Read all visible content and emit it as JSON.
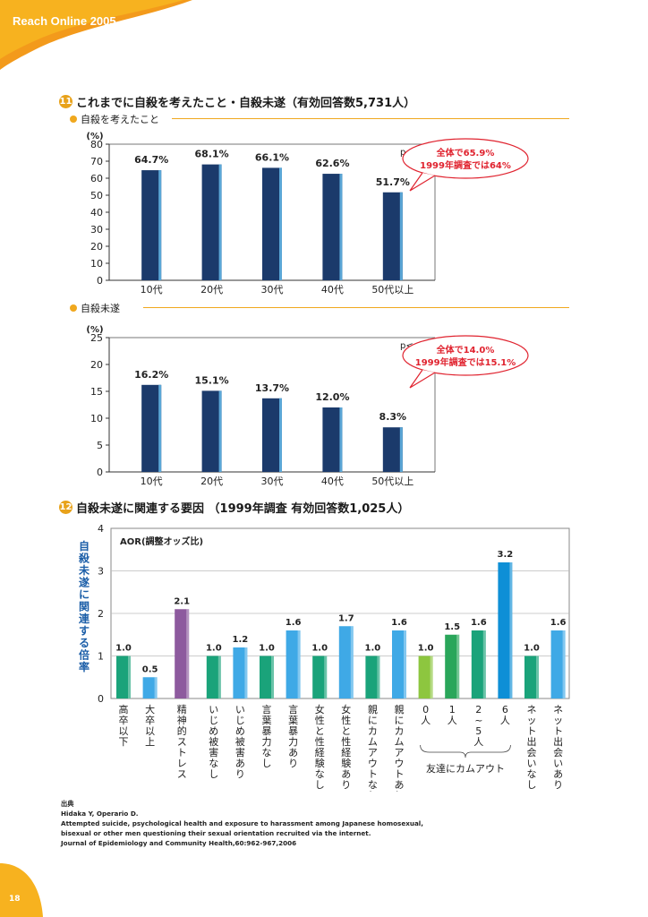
{
  "header": {
    "title": "Reach Online 2005"
  },
  "page_number": "18",
  "section11": {
    "number": "11",
    "title": "これまでに自殺を考えたこと・自殺未遂（有効回答数5,731人）"
  },
  "section12": {
    "number": "12",
    "title": "自殺未遂に関連する要因 （1999年調査 有効回答数1,025人）"
  },
  "chart_data": [
    {
      "type": "bar",
      "subtitle": "自殺を考えたこと",
      "unit_label": "(%)",
      "significance": "p<.001",
      "categories": [
        "10代",
        "20代",
        "30代",
        "40代",
        "50代以上"
      ],
      "values": [
        64.7,
        68.1,
        66.1,
        62.6,
        51.7
      ],
      "data_labels": [
        "64.7%",
        "68.1%",
        "66.1%",
        "62.6%",
        "51.7%"
      ],
      "ylim": [
        0,
        80
      ],
      "yticks": [
        "0",
        "10",
        "20",
        "30",
        "40",
        "50",
        "60",
        "70",
        "80"
      ],
      "annotation": [
        "全体で65.9%",
        "1999年調査では64%"
      ],
      "bar_color": "#1b3a6b",
      "annotation_color": "#e0232f"
    },
    {
      "type": "bar",
      "subtitle": "自殺未遂",
      "unit_label": "(%)",
      "significance": "p<.001",
      "categories": [
        "10代",
        "20代",
        "30代",
        "40代",
        "50代以上"
      ],
      "values": [
        16.2,
        15.1,
        13.7,
        12.0,
        8.3
      ],
      "data_labels": [
        "16.2%",
        "15.1%",
        "13.7%",
        "12.0%",
        "8.3%"
      ],
      "ylim": [
        0,
        25
      ],
      "yticks": [
        "0",
        "5",
        "10",
        "15",
        "20",
        "25"
      ],
      "annotation": [
        "全体で14.0%",
        "1999年調査では15.1%"
      ],
      "bar_color": "#1b3a6b",
      "annotation_color": "#e0232f"
    },
    {
      "type": "bar",
      "legend": "AOR(調整オッズ比)",
      "ylabel": "自殺未遂に関連する倍率",
      "ylim": [
        0,
        4
      ],
      "yticks": [
        "0",
        "1",
        "2",
        "3",
        "4"
      ],
      "categories": [
        "高卒以下",
        "大卒以上",
        "精神的ストレス",
        "いじめ被害なし",
        "いじめ被害あり",
        "言葉暴力なし",
        "言葉暴力あり",
        "女性と性経験なし",
        "女性と性経験あり",
        "親にカムアウトなし",
        "親にカムアウトあり",
        "0人",
        "1人",
        "2~5人",
        "6人",
        "ネット出会いなし",
        "ネット出会いあり"
      ],
      "values": [
        1.0,
        0.5,
        2.1,
        1.0,
        1.2,
        1.0,
        1.6,
        1.0,
        1.7,
        1.0,
        1.6,
        1.0,
        1.5,
        1.6,
        3.2,
        1.0,
        1.6
      ],
      "data_labels": [
        "1.0",
        "0.5",
        "2.1",
        "1.0",
        "1.2",
        "1.0",
        "1.6",
        "1.0",
        "1.7",
        "1.0",
        "1.6",
        "1.0",
        "1.5",
        "1.6",
        "3.2",
        "1.0",
        "1.6"
      ],
      "colors": [
        "#1aa37a",
        "#3fa9e6",
        "#8d5a9e",
        "#1aa37a",
        "#3fa9e6",
        "#1aa37a",
        "#3fa9e6",
        "#1aa37a",
        "#3fa9e6",
        "#1aa37a",
        "#3fa9e6",
        "#8dc63f",
        "#2aa65a",
        "#1aa37a",
        "#0e8fd6",
        "#1aa37a",
        "#3fa9e6"
      ],
      "group_label": "友達にカムアウト"
    }
  ],
  "source": {
    "heading": "出典",
    "lines": [
      "Hidaka Y, Operario D.",
      "Attempted suicide, psychological health and exposure to harassment among Japanese homosexual,",
      "bisexual or other men questioning their sexual orientation recruited via the internet.",
      "Journal of Epidemiology and Community Health,60:962-967,2006"
    ]
  }
}
